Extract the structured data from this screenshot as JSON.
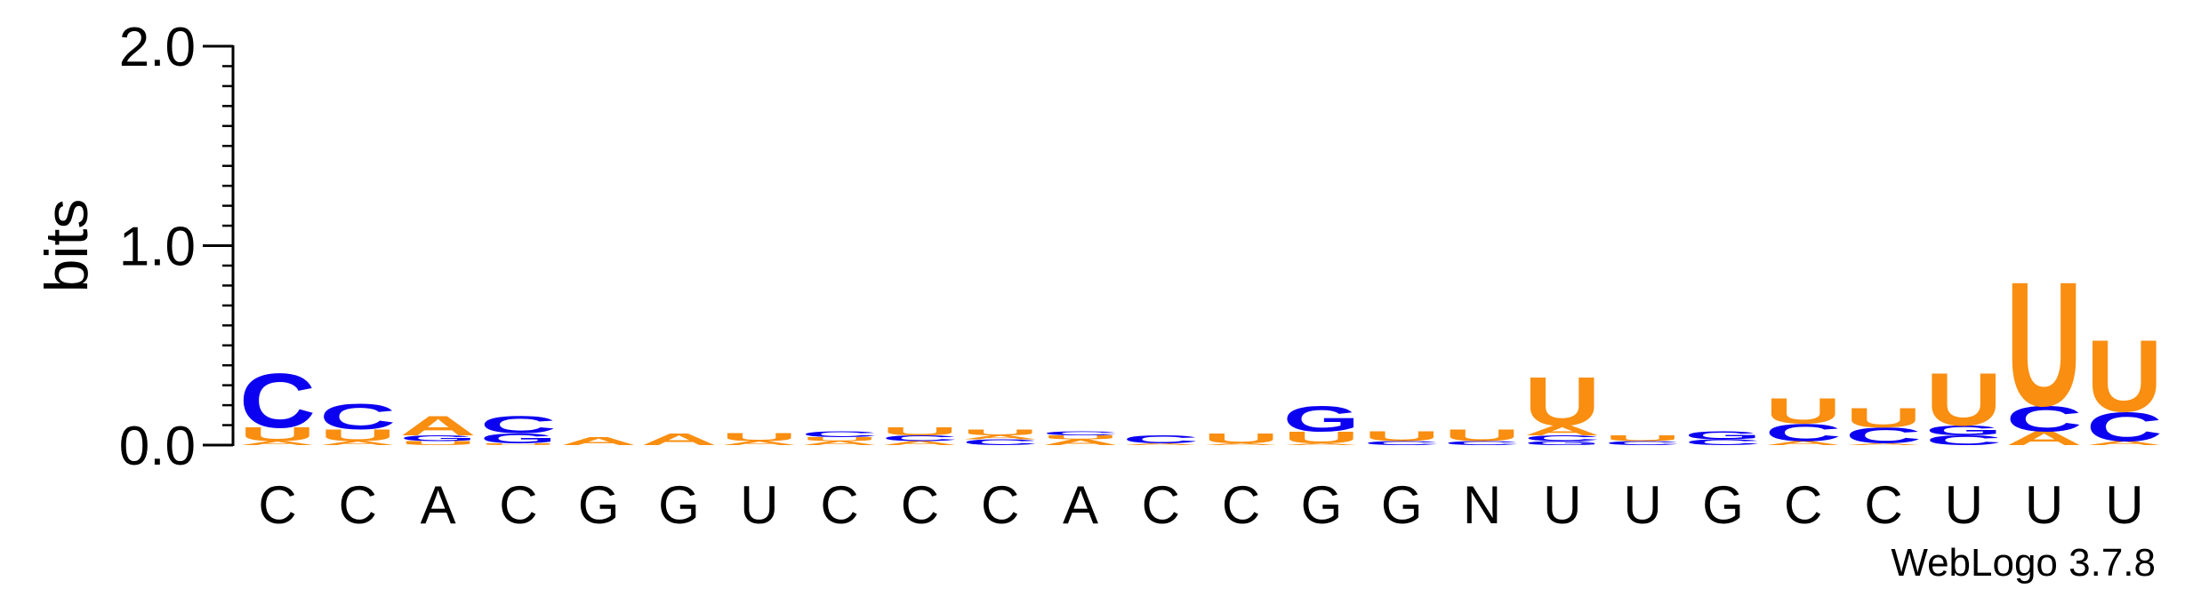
{
  "colors": {
    "A": "#f98e10",
    "C": "#0c00f0",
    "G": "#0c00f0",
    "U": "#f98e10",
    "axis": "#000000",
    "background": "#ffffff"
  },
  "chart_data": {
    "type": "sequence-logo",
    "title": "",
    "xlabel": "",
    "ylabel": "bits",
    "ylim": [
      0,
      2.0
    ],
    "yticks": [
      "0.0",
      "1.0",
      "2.0"
    ],
    "ytick_values": [
      0.0,
      1.0,
      2.0
    ],
    "y_minor_step": 0.1,
    "credit": "WebLogo 3.7.8",
    "positions": [
      {
        "label": "C",
        "stack": [
          {
            "base": "A",
            "bits": 0.02
          },
          {
            "base": "U",
            "bits": 0.07
          },
          {
            "base": "C",
            "bits": 0.28
          }
        ]
      },
      {
        "label": "C",
        "stack": [
          {
            "base": "A",
            "bits": 0.02
          },
          {
            "base": "U",
            "bits": 0.06
          },
          {
            "base": "C",
            "bits": 0.13
          }
        ]
      },
      {
        "label": "A",
        "stack": [
          {
            "base": "U",
            "bits": 0.02
          },
          {
            "base": "G",
            "bits": 0.03
          },
          {
            "base": "A",
            "bits": 0.1
          }
        ]
      },
      {
        "label": "C",
        "stack": [
          {
            "base": "U",
            "bits": 0.01
          },
          {
            "base": "G",
            "bits": 0.05
          },
          {
            "base": "C",
            "bits": 0.09
          }
        ]
      },
      {
        "label": "G",
        "stack": [
          {
            "base": "A",
            "bits": 0.04
          }
        ]
      },
      {
        "label": "G",
        "stack": [
          {
            "base": "A",
            "bits": 0.06
          }
        ]
      },
      {
        "label": "U",
        "stack": [
          {
            "base": "A",
            "bits": 0.02
          },
          {
            "base": "U",
            "bits": 0.04
          }
        ]
      },
      {
        "label": "C",
        "stack": [
          {
            "base": "A",
            "bits": 0.02
          },
          {
            "base": "U",
            "bits": 0.02
          },
          {
            "base": "C",
            "bits": 0.03
          }
        ]
      },
      {
        "label": "C",
        "stack": [
          {
            "base": "A",
            "bits": 0.02
          },
          {
            "base": "C",
            "bits": 0.03
          },
          {
            "base": "U",
            "bits": 0.04
          }
        ]
      },
      {
        "label": "C",
        "stack": [
          {
            "base": "C",
            "bits": 0.03
          },
          {
            "base": "A",
            "bits": 0.02
          },
          {
            "base": "U",
            "bits": 0.03
          }
        ]
      },
      {
        "label": "A",
        "stack": [
          {
            "base": "A",
            "bits": 0.03
          },
          {
            "base": "U",
            "bits": 0.02
          },
          {
            "base": "C",
            "bits": 0.02
          }
        ]
      },
      {
        "label": "C",
        "stack": [
          {
            "base": "A",
            "bits": 0.01
          },
          {
            "base": "C",
            "bits": 0.04
          }
        ]
      },
      {
        "label": "C",
        "stack": [
          {
            "base": "A",
            "bits": 0.01
          },
          {
            "base": "U",
            "bits": 0.05
          }
        ]
      },
      {
        "label": "G",
        "stack": [
          {
            "base": "A",
            "bits": 0.01
          },
          {
            "base": "U",
            "bits": 0.06
          },
          {
            "base": "G",
            "bits": 0.13
          }
        ]
      },
      {
        "label": "G",
        "stack": [
          {
            "base": "C",
            "bits": 0.02
          },
          {
            "base": "U",
            "bits": 0.05
          }
        ]
      },
      {
        "label": "N",
        "stack": [
          {
            "base": "C",
            "bits": 0.02
          },
          {
            "base": "U",
            "bits": 0.06
          }
        ]
      },
      {
        "label": "U",
        "stack": [
          {
            "base": "G",
            "bits": 0.02
          },
          {
            "base": "C",
            "bits": 0.03
          },
          {
            "base": "A",
            "bits": 0.05
          },
          {
            "base": "U",
            "bits": 0.25
          }
        ]
      },
      {
        "label": "U",
        "stack": [
          {
            "base": "C",
            "bits": 0.02
          },
          {
            "base": "U",
            "bits": 0.03
          }
        ]
      },
      {
        "label": "G",
        "stack": [
          {
            "base": "C",
            "bits": 0.03
          },
          {
            "base": "G",
            "bits": 0.04
          }
        ]
      },
      {
        "label": "C",
        "stack": [
          {
            "base": "A",
            "bits": 0.02
          },
          {
            "base": "C",
            "bits": 0.09
          },
          {
            "base": "U",
            "bits": 0.13
          }
        ]
      },
      {
        "label": "C",
        "stack": [
          {
            "base": "A",
            "bits": 0.01
          },
          {
            "base": "C",
            "bits": 0.08
          },
          {
            "base": "U",
            "bits": 0.1
          }
        ]
      },
      {
        "label": "U",
        "stack": [
          {
            "base": "C",
            "bits": 0.05
          },
          {
            "base": "G",
            "bits": 0.05
          },
          {
            "base": "U",
            "bits": 0.27
          }
        ]
      },
      {
        "label": "U",
        "stack": [
          {
            "base": "A",
            "bits": 0.07
          },
          {
            "base": "C",
            "bits": 0.13
          },
          {
            "base": "U",
            "bits": 0.64
          }
        ]
      },
      {
        "label": "U",
        "stack": [
          {
            "base": "A",
            "bits": 0.02
          },
          {
            "base": "C",
            "bits": 0.15
          },
          {
            "base": "U",
            "bits": 0.37
          }
        ]
      }
    ]
  }
}
